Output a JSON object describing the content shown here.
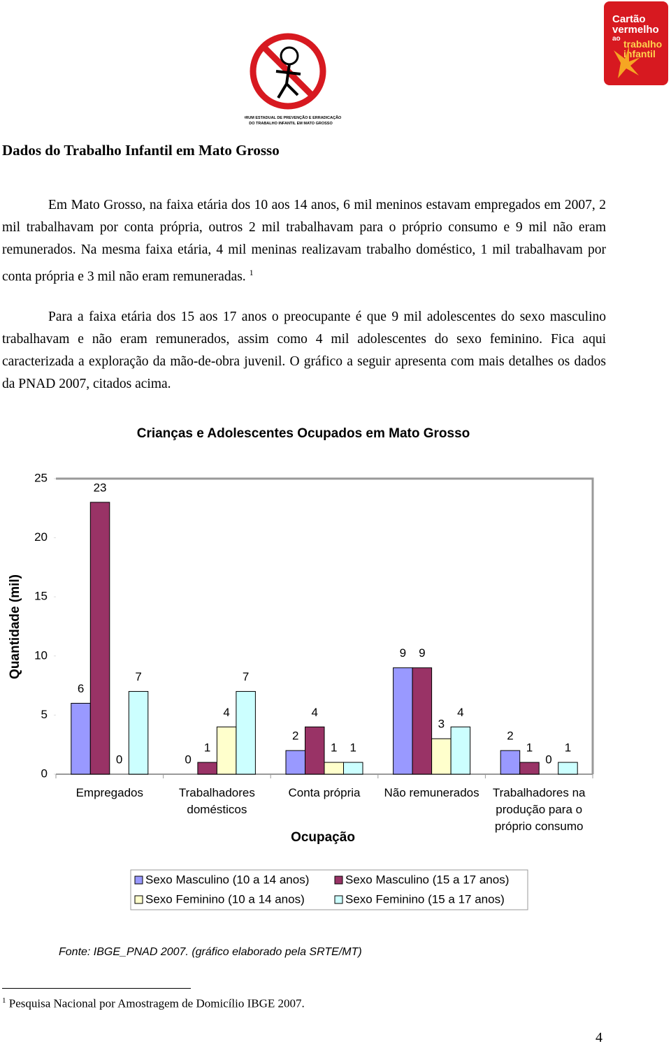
{
  "header": {
    "logo_left": [
      "FÓRUM ESTADUAL DE PREVENÇÃO E ERRADICAÇÃO",
      "DO TRABALHO INFANTIL EM MATO GROSSO"
    ],
    "logo_right": [
      "Cartão",
      "vermelho",
      "ao",
      "trabalho",
      "infantil"
    ]
  },
  "title": "Dados do Trabalho Infantil em Mato Grosso",
  "paragraphs": [
    "Em Mato Grosso, na faixa etária dos 10 aos 14 anos, 6 mil meninos estavam empregados em 2007, 2 mil trabalhavam por conta própria, outros 2 mil trabalhavam para o próprio consumo e 9 mil não eram remunerados. Na mesma faixa etária, 4 mil meninas realizavam trabalho doméstico, 1 mil trabalhavam por conta própria e 3 mil não eram remuneradas.",
    "Para a faixa etária dos 15 aos 17 anos o preocupante é que 9 mil adolescentes do sexo masculino trabalhavam e não eram remunerados, assim como 4 mil adolescentes do sexo feminino. Fica aqui caracterizada a exploração da mão-de-obra juvenil. O gráfico a seguir apresenta com mais detalhes os dados da PNAD 2007, citados acima."
  ],
  "footnote_ref": "1",
  "chart_data": {
    "type": "bar",
    "title": "Crianças e Adolescentes Ocupados em Mato Grosso",
    "xlabel": "Ocupação",
    "ylabel": "Quantidade (mil)",
    "categories": [
      "Empregados",
      "Trabalhadores domésticos",
      "Conta própria",
      "Não remunerados",
      "Trabalhadores na produção para o próprio consumo"
    ],
    "series": [
      {
        "name": "Sexo Masculino (10 a 14 anos)",
        "color": "#9999ff",
        "values": [
          6,
          0,
          2,
          9,
          2
        ]
      },
      {
        "name": "Sexo Masculino (15 a 17 anos)",
        "color": "#993366",
        "values": [
          23,
          1,
          4,
          9,
          1
        ]
      },
      {
        "name": "Sexo Feminino (10 a 14 anos)",
        "color": "#ffffcc",
        "values": [
          0,
          4,
          1,
          3,
          0
        ]
      },
      {
        "name": "Sexo Feminino (15 a 17 anos)",
        "color": "#ccffff",
        "values": [
          7,
          7,
          1,
          4,
          1
        ]
      }
    ],
    "ylim": [
      0,
      25
    ],
    "yticks": [
      0,
      5,
      10,
      15,
      20,
      25
    ],
    "grid": false,
    "legend": "bottom"
  },
  "source": "Fonte: IBGE_PNAD 2007. (gráfico elaborado pela SRTE/MT)",
  "footnote": {
    "mark": "1",
    "text": "Pesquisa Nacional por Amostragem de Domicílio IBGE 2007."
  },
  "page_number": "4"
}
